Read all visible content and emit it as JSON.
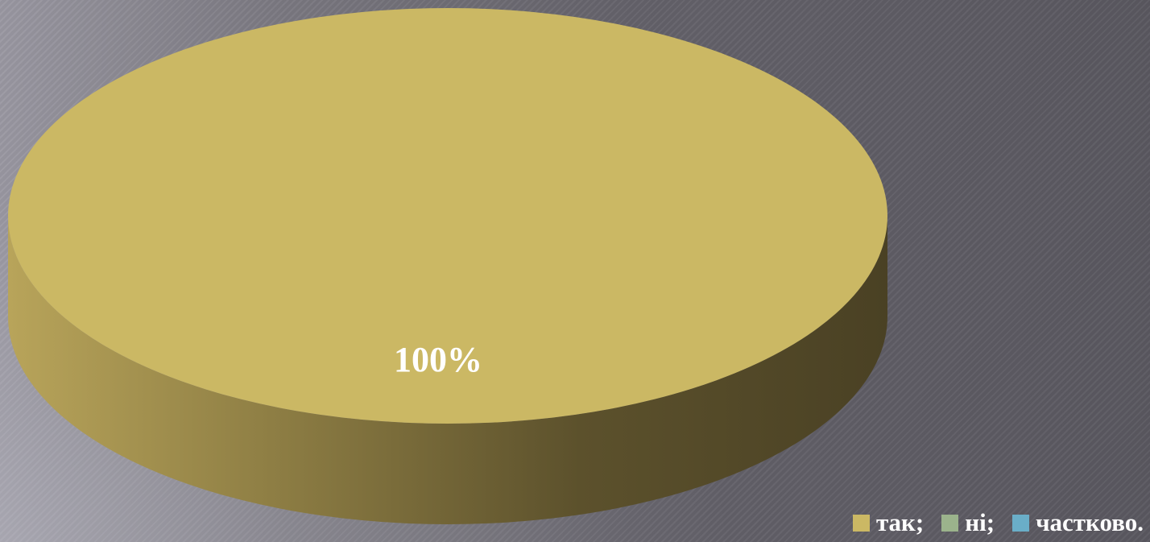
{
  "chart_data": {
    "type": "pie",
    "style": "3d",
    "categories": [
      "так;",
      "ні;",
      "частково."
    ],
    "values": [
      100,
      0,
      0
    ],
    "data_labels": [
      "100%",
      "",
      ""
    ],
    "colors": [
      "#cbb864",
      "#9bb38c",
      "#6aaec8"
    ],
    "title": "",
    "legend_position": "bottom-right"
  }
}
